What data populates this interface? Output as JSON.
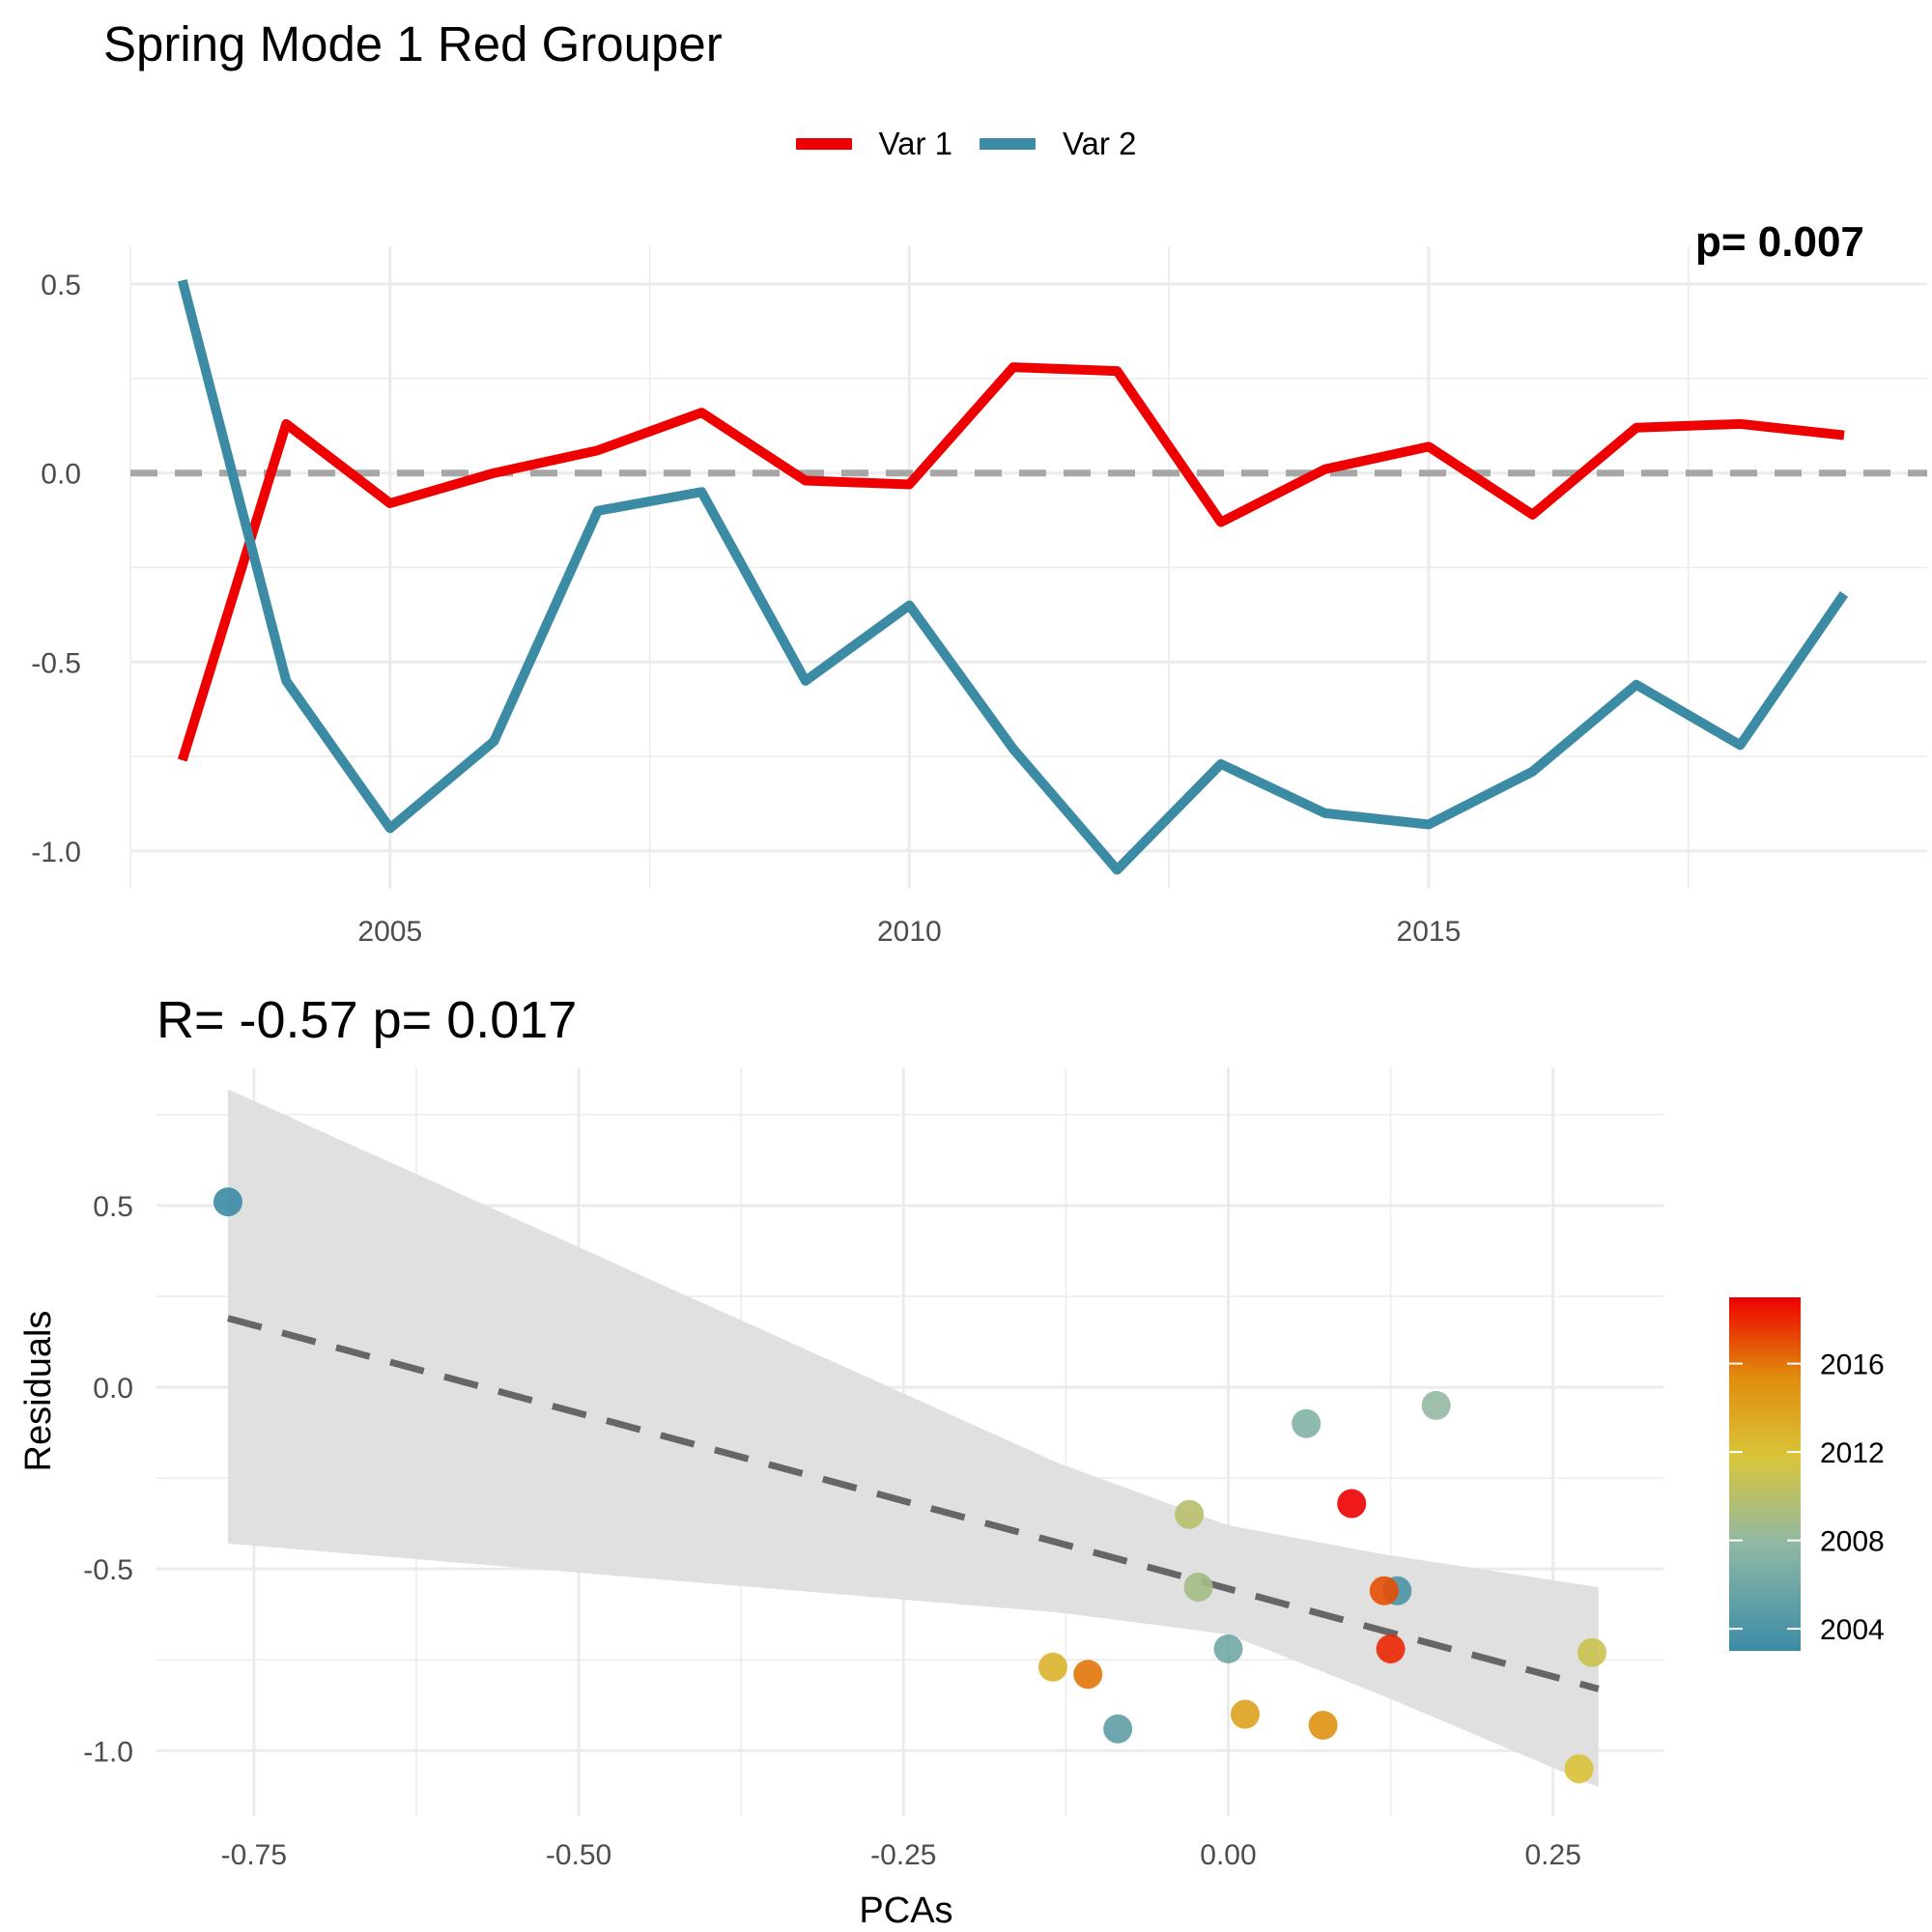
{
  "figure": {
    "title": "Spring Mode 1 Red Grouper",
    "stat_annotation": "R= -0.57  p= 0.017",
    "top_right_clipped_text": "p= 0.007"
  },
  "colors": {
    "var1": "#EE0000",
    "var2": "#3B8BA5",
    "zero_line": "#A6A6A6",
    "grid": "#EBEBEB",
    "ribbon": "#DEDEDE",
    "fit_line": "#666666",
    "gradient": [
      "#3B8BA5",
      "#8FB8A6",
      "#D9C53A",
      "#E08A0B",
      "#EE0000"
    ]
  },
  "chart_data": [
    {
      "type": "line",
      "title": "",
      "xlabel": "",
      "ylabel": "",
      "x": [
        2003,
        2004,
        2005,
        2006,
        2007,
        2008,
        2009,
        2010,
        2011,
        2012,
        2013,
        2014,
        2015,
        2016,
        2017,
        2018,
        2019
      ],
      "series": [
        {
          "name": "Var 1",
          "color": "#EE0000",
          "values": [
            -0.76,
            0.13,
            -0.08,
            0.0,
            0.06,
            0.16,
            -0.02,
            -0.03,
            0.28,
            0.27,
            -0.13,
            0.01,
            0.07,
            -0.11,
            0.12,
            0.13,
            0.1
          ]
        },
        {
          "name": "Var 2",
          "color": "#3B8BA5",
          "values": [
            0.51,
            -0.55,
            -0.94,
            -0.71,
            -0.1,
            -0.05,
            -0.55,
            -0.35,
            -0.73,
            -1.05,
            -0.77,
            -0.9,
            -0.93,
            -0.79,
            -0.56,
            -0.72,
            -0.32
          ]
        }
      ],
      "xticks": [
        2005,
        2010,
        2015
      ],
      "yticks": [
        -1.0,
        -0.5,
        0.0,
        0.5
      ],
      "ytick_labels": [
        "-1.0",
        "-0.5",
        "0.0",
        "0.5"
      ],
      "xlim": [
        2002.5,
        2019.8
      ],
      "ylim": [
        -1.1,
        0.6
      ],
      "reference_line": {
        "y": 0,
        "style": "dashed"
      },
      "legend": {
        "position": "top",
        "entries": [
          "Var 1",
          "Var 2"
        ]
      },
      "grid": true
    },
    {
      "type": "scatter",
      "title": "R= -0.57  p= 0.017",
      "xlabel": "PCAs",
      "ylabel": "Residuals",
      "xlim": [
        -0.825,
        0.335
      ],
      "ylim": [
        -1.18,
        0.88
      ],
      "xticks": [
        -0.75,
        -0.5,
        -0.25,
        0.0,
        0.25
      ],
      "xtick_labels": [
        "-0.75",
        "-0.50",
        "-0.25",
        "0.00",
        "0.25"
      ],
      "yticks": [
        -1.0,
        -0.5,
        0.0,
        0.5
      ],
      "ytick_labels": [
        "-1.0",
        "-0.5",
        "0.0",
        "0.5"
      ],
      "points": [
        {
          "x": -0.77,
          "y": 0.51,
          "year": 2003
        },
        {
          "x": 0.13,
          "y": -0.56,
          "year": 2004
        },
        {
          "x": -0.085,
          "y": -0.94,
          "year": 2005
        },
        {
          "x": 0.0,
          "y": -0.72,
          "year": 2006
        },
        {
          "x": 0.06,
          "y": -0.1,
          "year": 2007
        },
        {
          "x": 0.16,
          "y": -0.05,
          "year": 2008
        },
        {
          "x": -0.023,
          "y": -0.55,
          "year": 2009
        },
        {
          "x": -0.03,
          "y": -0.35,
          "year": 2010
        },
        {
          "x": 0.28,
          "y": -0.73,
          "year": 2011
        },
        {
          "x": 0.27,
          "y": -1.05,
          "year": 2012
        },
        {
          "x": -0.135,
          "y": -0.77,
          "year": 2013
        },
        {
          "x": 0.013,
          "y": -0.9,
          "year": 2014
        },
        {
          "x": 0.073,
          "y": -0.93,
          "year": 2015
        },
        {
          "x": -0.108,
          "y": -0.79,
          "year": 2016
        },
        {
          "x": 0.12,
          "y": -0.56,
          "year": 2017
        },
        {
          "x": 0.125,
          "y": -0.72,
          "year": 2018
        },
        {
          "x": 0.095,
          "y": -0.32,
          "year": 2019
        }
      ],
      "fit": {
        "style": "dashed",
        "line": [
          [
            -0.77,
            0.19
          ],
          [
            0.285,
            -0.83
          ]
        ],
        "ribbon_upper": [
          [
            -0.77,
            0.82
          ],
          [
            -0.13,
            -0.21
          ],
          [
            0.0,
            -0.38
          ],
          [
            0.12,
            -0.46
          ],
          [
            0.285,
            -0.55
          ]
        ],
        "ribbon_lower": [
          [
            -0.77,
            -0.43
          ],
          [
            -0.13,
            -0.62
          ],
          [
            0.0,
            -0.68
          ],
          [
            0.12,
            -0.85
          ],
          [
            0.285,
            -1.1
          ]
        ]
      },
      "colorbar": {
        "labels": [
          "2016",
          "2012",
          "2008",
          "2004"
        ],
        "values": [
          2016,
          2012,
          2008,
          2004
        ],
        "range": [
          2003,
          2019
        ]
      },
      "grid": true
    }
  ]
}
